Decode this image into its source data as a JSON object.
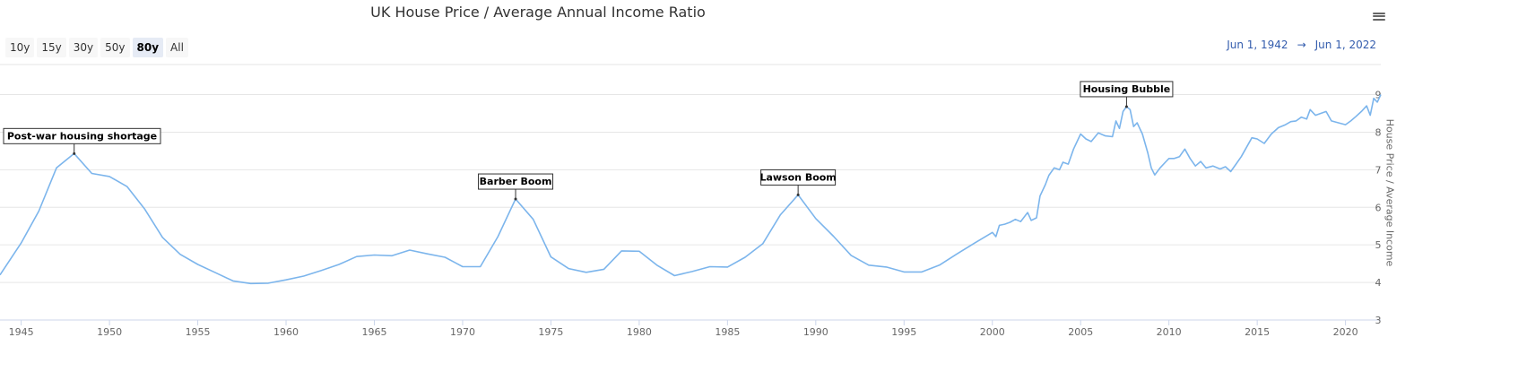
{
  "title": "UK House Price / Average Annual Income Ratio",
  "range_selector": {
    "buttons": [
      "10y",
      "15y",
      "30y",
      "50y",
      "80y",
      "All"
    ],
    "selected": "80y"
  },
  "range_display": {
    "from": "Jun 1, 1942",
    "arrow": "→",
    "to": "Jun 1, 2022"
  },
  "menu_icon": "hamburger-menu-icon",
  "colors": {
    "series": "#7cb5ec",
    "grid": "#e6e6e6",
    "axis_text": "#666666",
    "range_text": "#335cad"
  },
  "chart_data": {
    "type": "line",
    "title": "UK House Price / Average Annual Income Ratio",
    "ylabel": "House Price / Average Income",
    "xlabel": "",
    "xlim": [
      1943.8,
      2022.0
    ],
    "ylim": [
      3,
      9.8
    ],
    "y_ticks": [
      3,
      4,
      5,
      6,
      7,
      8,
      9
    ],
    "x_ticks": [
      1945,
      1950,
      1955,
      1960,
      1965,
      1970,
      1975,
      1980,
      1985,
      1990,
      1995,
      2000,
      2005,
      2010,
      2015,
      2020
    ],
    "grid": true,
    "legend": "none",
    "annotations": [
      {
        "label": "Post-war housing shortage",
        "x": 1948,
        "y": 7.43
      },
      {
        "label": "Barber Boom",
        "x": 1973,
        "y": 6.22
      },
      {
        "label": "Lawson Boom",
        "x": 1989,
        "y": 6.33
      },
      {
        "label": "Housing Bubble",
        "x": 2007.6,
        "y": 8.68
      }
    ],
    "series": [
      {
        "values": [
          [
            1943.8,
            4.2
          ],
          [
            1945,
            5.05
          ],
          [
            1946,
            5.9
          ],
          [
            1947,
            7.05
          ],
          [
            1948,
            7.43
          ],
          [
            1949,
            6.9
          ],
          [
            1950,
            6.82
          ],
          [
            1951,
            6.55
          ],
          [
            1952,
            5.95
          ],
          [
            1953,
            5.2
          ],
          [
            1954,
            4.75
          ],
          [
            1955,
            4.48
          ],
          [
            1956,
            4.26
          ],
          [
            1957,
            4.04
          ],
          [
            1958,
            3.97
          ],
          [
            1959,
            3.98
          ],
          [
            1960,
            4.07
          ],
          [
            1961,
            4.17
          ],
          [
            1962,
            4.32
          ],
          [
            1963,
            4.48
          ],
          [
            1964,
            4.69
          ],
          [
            1965,
            4.73
          ],
          [
            1966,
            4.71
          ],
          [
            1967,
            4.86
          ],
          [
            1968,
            4.76
          ],
          [
            1969,
            4.67
          ],
          [
            1970,
            4.42
          ],
          [
            1971,
            4.42
          ],
          [
            1972,
            5.22
          ],
          [
            1973,
            6.22
          ],
          [
            1974,
            5.68
          ],
          [
            1975,
            4.68
          ],
          [
            1976,
            4.37
          ],
          [
            1977,
            4.27
          ],
          [
            1978,
            4.35
          ],
          [
            1979,
            4.84
          ],
          [
            1980,
            4.83
          ],
          [
            1981,
            4.46
          ],
          [
            1982,
            4.18
          ],
          [
            1983,
            4.29
          ],
          [
            1984,
            4.42
          ],
          [
            1985,
            4.41
          ],
          [
            1986,
            4.67
          ],
          [
            1987,
            5.03
          ],
          [
            1988,
            5.8
          ],
          [
            1989,
            6.33
          ],
          [
            1990,
            5.7
          ],
          [
            1991,
            5.23
          ],
          [
            1992,
            4.72
          ],
          [
            1993,
            4.46
          ],
          [
            1994,
            4.41
          ],
          [
            1995,
            4.28
          ],
          [
            1996,
            4.28
          ],
          [
            1997,
            4.46
          ],
          [
            1998,
            4.76
          ],
          [
            1999,
            5.05
          ],
          [
            2000,
            5.33
          ],
          [
            2000.2,
            5.22
          ],
          [
            2000.4,
            5.52
          ],
          [
            2000.7,
            5.55
          ],
          [
            2001,
            5.6
          ],
          [
            2001.3,
            5.68
          ],
          [
            2001.6,
            5.62
          ],
          [
            2002,
            5.86
          ],
          [
            2002.2,
            5.65
          ],
          [
            2002.5,
            5.72
          ],
          [
            2002.7,
            6.3
          ],
          [
            2003,
            6.6
          ],
          [
            2003.2,
            6.85
          ],
          [
            2003.5,
            7.05
          ],
          [
            2003.8,
            7.0
          ],
          [
            2004,
            7.2
          ],
          [
            2004.3,
            7.15
          ],
          [
            2004.6,
            7.55
          ],
          [
            2005,
            7.95
          ],
          [
            2005.3,
            7.82
          ],
          [
            2005.6,
            7.75
          ],
          [
            2006,
            7.98
          ],
          [
            2006.4,
            7.9
          ],
          [
            2006.8,
            7.88
          ],
          [
            2007,
            8.3
          ],
          [
            2007.2,
            8.1
          ],
          [
            2007.4,
            8.55
          ],
          [
            2007.6,
            8.68
          ],
          [
            2007.8,
            8.6
          ],
          [
            2008,
            8.15
          ],
          [
            2008.2,
            8.25
          ],
          [
            2008.5,
            7.95
          ],
          [
            2008.8,
            7.45
          ],
          [
            2009,
            7.05
          ],
          [
            2009.2,
            6.86
          ],
          [
            2009.5,
            7.05
          ],
          [
            2009.8,
            7.2
          ],
          [
            2010,
            7.3
          ],
          [
            2010.3,
            7.3
          ],
          [
            2010.6,
            7.35
          ],
          [
            2010.9,
            7.55
          ],
          [
            2011.2,
            7.3
          ],
          [
            2011.5,
            7.1
          ],
          [
            2011.8,
            7.22
          ],
          [
            2012.1,
            7.05
          ],
          [
            2012.5,
            7.1
          ],
          [
            2012.9,
            7.02
          ],
          [
            2013.2,
            7.08
          ],
          [
            2013.5,
            6.95
          ],
          [
            2013.8,
            7.15
          ],
          [
            2014.1,
            7.35
          ],
          [
            2014.4,
            7.6
          ],
          [
            2014.7,
            7.85
          ],
          [
            2015,
            7.82
          ],
          [
            2015.4,
            7.7
          ],
          [
            2015.8,
            7.95
          ],
          [
            2016.2,
            8.12
          ],
          [
            2016.6,
            8.2
          ],
          [
            2016.9,
            8.28
          ],
          [
            2017.2,
            8.3
          ],
          [
            2017.5,
            8.4
          ],
          [
            2017.8,
            8.35
          ],
          [
            2018,
            8.6
          ],
          [
            2018.3,
            8.45
          ],
          [
            2018.6,
            8.5
          ],
          [
            2018.9,
            8.55
          ],
          [
            2019.2,
            8.3
          ],
          [
            2019.6,
            8.25
          ],
          [
            2020,
            8.2
          ],
          [
            2020.3,
            8.3
          ],
          [
            2020.6,
            8.42
          ],
          [
            2020.9,
            8.55
          ],
          [
            2021.2,
            8.7
          ],
          [
            2021.4,
            8.45
          ],
          [
            2021.6,
            8.9
          ],
          [
            2021.8,
            8.8
          ],
          [
            2022,
            9.0
          ]
        ]
      }
    ]
  }
}
